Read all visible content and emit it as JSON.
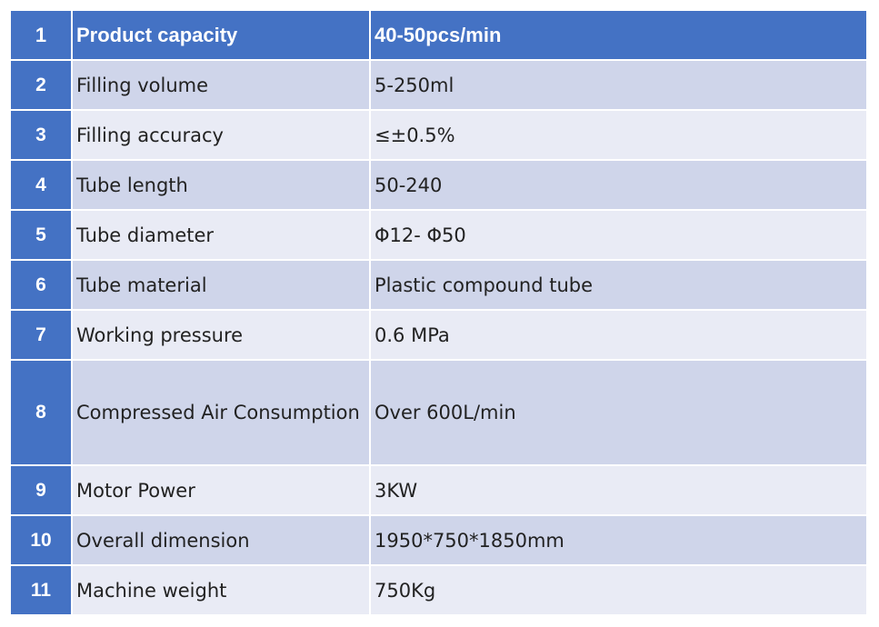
{
  "table": {
    "rows": [
      {
        "num": "1",
        "param": "Product capacity",
        "value": "40-50pcs/min"
      },
      {
        "num": "2",
        "param": "Filling volume",
        "value": "5-250ml"
      },
      {
        "num": "3",
        "param": "Filling accuracy",
        "value": "≤±0.5%"
      },
      {
        "num": "4",
        "param": "Tube length",
        "value": "50-240"
      },
      {
        "num": "5",
        "param": "Tube diameter",
        "value": "Φ12- Φ50"
      },
      {
        "num": "6",
        "param": "Tube material",
        "value": "Plastic compound tube"
      },
      {
        "num": "7",
        "param": "Working pressure",
        "value": "0.6 MPa"
      },
      {
        "num": "8",
        "param": "Compressed Air Consumption",
        "value": "Over 600L/min"
      },
      {
        "num": "9",
        "param": "Motor Power",
        "value": "3KW"
      },
      {
        "num": "10",
        "param": "Overall dimension",
        "value": "1950*750*1850mm"
      },
      {
        "num": "11",
        "param": "Machine weight",
        "value": "750Kg"
      }
    ]
  },
  "colors": {
    "header_blue": "#4472c4",
    "band_dark": "#cfd5ea",
    "band_light": "#e9ebf5"
  }
}
